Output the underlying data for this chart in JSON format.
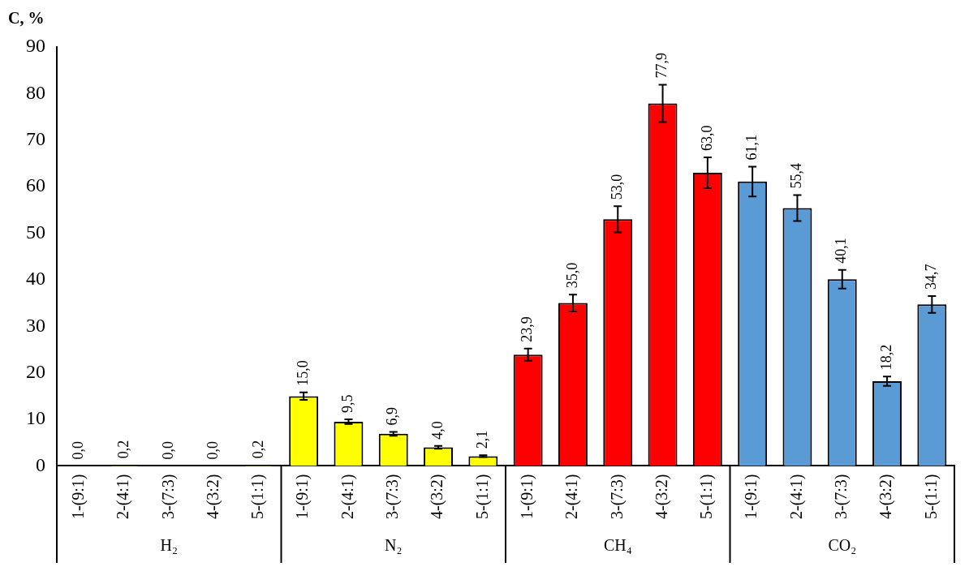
{
  "chart_data": {
    "type": "bar",
    "ylabel": "C, %",
    "categories": [
      "1-(9:1)",
      "2-(4:1)",
      "3-(7:3)",
      "4-(3:2)",
      "5-(1:1)",
      "1-(9:1)",
      "2-(4:1)",
      "3-(7:3)",
      "4-(3:2)",
      "5-(1:1)",
      "1-(9:1)",
      "2-(4:1)",
      "3-(7:3)",
      "4-(3:2)",
      "5-(1:1)",
      "1-(9:1)",
      "2-(4:1)",
      "3-(7:3)",
      "4-(3:2)",
      "5-(1:1)"
    ],
    "values": [
      0.0,
      0.2,
      0.0,
      0.0,
      0.2,
      15.0,
      9.5,
      6.9,
      4.0,
      2.1,
      23.9,
      35.0,
      53.0,
      77.9,
      63.0,
      61.1,
      55.4,
      40.1,
      18.2,
      34.7
    ],
    "value_labels": [
      "0,0",
      "0,2",
      "0,0",
      "0,0",
      "0,2",
      "15,0",
      "9,5",
      "6,9",
      "4,0",
      "2,1",
      "23,9",
      "35,0",
      "53,0",
      "77,9",
      "63,0",
      "61,1",
      "55,4",
      "40,1",
      "18,2",
      "34,7"
    ],
    "errors": [
      null,
      null,
      null,
      null,
      null,
      0.8,
      0.5,
      0.4,
      0.3,
      0.2,
      1.3,
      1.8,
      2.8,
      4.0,
      3.3,
      3.2,
      2.8,
      2.0,
      1.0,
      1.8
    ],
    "colors": [
      "#ffff00",
      "#ffff00",
      "#ffff00",
      "#ffff00",
      "#ffff00",
      "#ffff00",
      "#ffff00",
      "#ffff00",
      "#ffff00",
      "#ffff00",
      "#ff0000",
      "#ff0000",
      "#ff0000",
      "#ff0000",
      "#ff0000",
      "#5b9bd5",
      "#5b9bd5",
      "#5b9bd5",
      "#5b9bd5",
      "#5b9bd5"
    ],
    "annotations": [
      "H₂",
      "N₂",
      "CH₄",
      "CO₂"
    ],
    "ylim": [
      0,
      90
    ],
    "yticks": [
      0,
      10,
      20,
      30,
      40,
      50,
      60,
      70,
      80,
      90
    ],
    "grid": false,
    "legend": false
  }
}
